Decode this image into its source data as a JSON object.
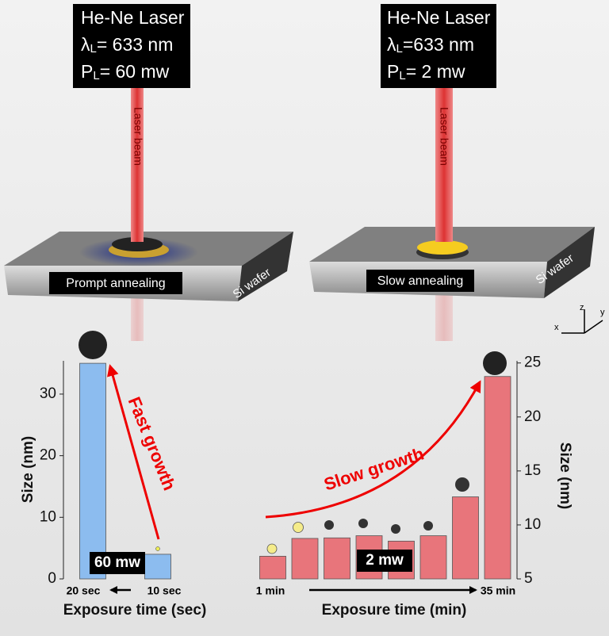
{
  "illustration": {
    "left": {
      "lines": [
        [
          "He-Ne Laser"
        ],
        [
          "λ",
          "L",
          "= 633 nm"
        ],
        [
          "P",
          "L",
          "= 60 mw"
        ]
      ],
      "beam": "Laser beam",
      "process": "Prompt annealing",
      "wafer": "Si wafer"
    },
    "right": {
      "lines": [
        [
          "He-Ne Laser"
        ],
        [
          "λ",
          "L",
          "=633 nm"
        ],
        [
          "P",
          "L",
          "= 2 mw"
        ]
      ],
      "beam": "Laser beam",
      "process": "Slow annealing",
      "wafer": "Si wafer"
    },
    "axes": [
      "z",
      "y",
      "x"
    ]
  },
  "chart_data": [
    {
      "type": "bar",
      "categories": [
        "20 sec",
        "10 sec"
      ],
      "values": [
        35,
        4
      ],
      "color": "#8cbcef",
      "ylim": [
        0,
        35.4
      ],
      "yticks": [
        0,
        10,
        20,
        30
      ],
      "y_label": "Size (nm)",
      "x_label": "Exposure time (sec)",
      "annotation": "Fast growth",
      "power": "60 mw"
    },
    {
      "type": "bar",
      "categories": [
        "1 min",
        null,
        null,
        null,
        null,
        null,
        null,
        "35 min"
      ],
      "values": [
        7.1,
        8.75,
        8.8,
        9.0,
        8.5,
        9.0,
        12.6,
        23.75
      ],
      "color": "#e8757b",
      "ylim": [
        5,
        25.2
      ],
      "yticks": [
        5,
        10,
        15,
        20,
        25
      ],
      "y_label": "Size (nm)",
      "x_label": "Exposure time (min)",
      "annotation": "Slow growth",
      "power": "2 mw"
    }
  ]
}
